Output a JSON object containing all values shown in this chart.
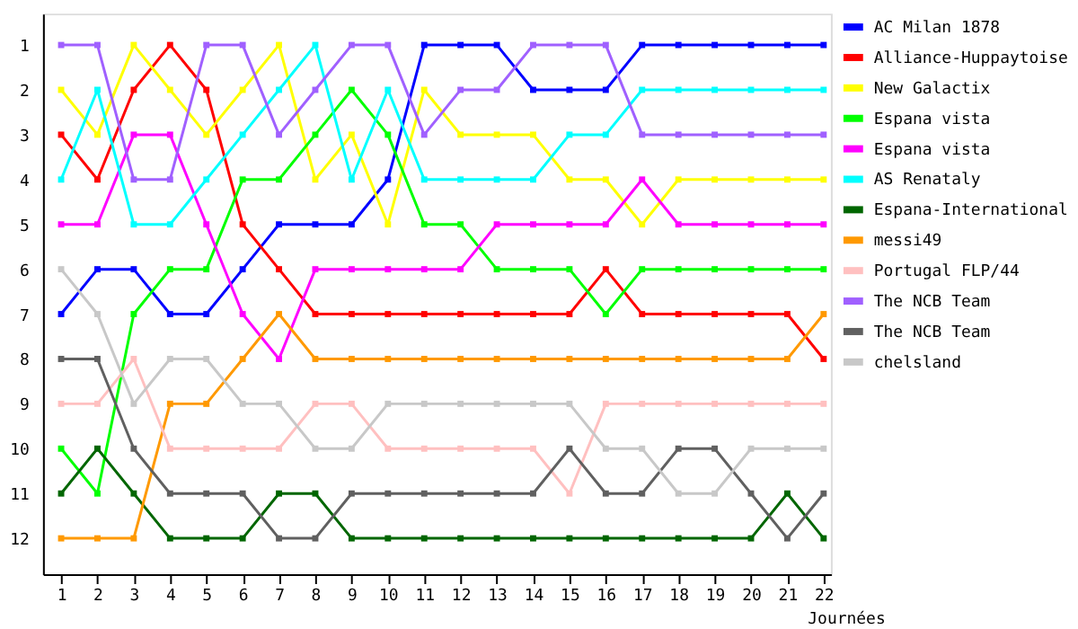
{
  "chart_data": {
    "type": "line",
    "xlabel": "Journées",
    "x": [
      1,
      2,
      3,
      4,
      5,
      6,
      7,
      8,
      9,
      10,
      11,
      12,
      13,
      14,
      15,
      16,
      17,
      18,
      19,
      20,
      21,
      22
    ],
    "xlim": [
      0.5,
      22.2
    ],
    "xticks": [
      1,
      2,
      3,
      4,
      5,
      6,
      7,
      8,
      9,
      10,
      11,
      12,
      13,
      14,
      15,
      16,
      17,
      18,
      19,
      20,
      21,
      22
    ],
    "ylim": [
      12.8,
      0.3
    ],
    "yticks": [
      1,
      2,
      3,
      4,
      5,
      6,
      7,
      8,
      9,
      10,
      11,
      12
    ],
    "grid": false,
    "legend": "right",
    "marker": "square",
    "line_style": "solid",
    "series": [
      {
        "name": "AC Milan 1878",
        "color": "#0000ff",
        "values": [
          7,
          6,
          6,
          7,
          7,
          6,
          5,
          5,
          5,
          4,
          1,
          1,
          1,
          2,
          2,
          2,
          1,
          1,
          1,
          1,
          1,
          1
        ]
      },
      {
        "name": "Alliance-Huppaytoise",
        "color": "#ff0000",
        "values": [
          3,
          4,
          2,
          1,
          2,
          5,
          6,
          7,
          7,
          7,
          7,
          7,
          7,
          7,
          7,
          6,
          7,
          7,
          7,
          7,
          7,
          8
        ]
      },
      {
        "name": "New Galactix",
        "color": "#ffff00",
        "values": [
          2,
          3,
          1,
          2,
          3,
          2,
          1,
          4,
          3,
          5,
          2,
          3,
          3,
          3,
          4,
          4,
          5,
          4,
          4,
          4,
          4,
          4
        ]
      },
      {
        "name": "Espana vista",
        "color": "#00ff00",
        "values": [
          10,
          11,
          7,
          6,
          6,
          4,
          4,
          3,
          2,
          3,
          5,
          5,
          6,
          6,
          6,
          7,
          6,
          6,
          6,
          6,
          6,
          6
        ]
      },
      {
        "name": "Espana vista",
        "color": "#ff00ff",
        "values": [
          5,
          5,
          3,
          3,
          5,
          7,
          8,
          6,
          6,
          6,
          6,
          6,
          5,
          5,
          5,
          5,
          4,
          5,
          5,
          5,
          5,
          5
        ]
      },
      {
        "name": "AS Renataly",
        "color": "#00ffff",
        "values": [
          4,
          2,
          5,
          5,
          4,
          3,
          2,
          1,
          4,
          2,
          4,
          4,
          4,
          4,
          3,
          3,
          2,
          2,
          2,
          2,
          2,
          2
        ]
      },
      {
        "name": "Espana-International",
        "color": "#006600",
        "values": [
          11,
          10,
          11,
          12,
          12,
          12,
          11,
          11,
          12,
          12,
          12,
          12,
          12,
          12,
          12,
          12,
          12,
          12,
          12,
          12,
          11,
          12
        ]
      },
      {
        "name": "messi49",
        "color": "#ff9900",
        "values": [
          12,
          12,
          12,
          9,
          9,
          8,
          7,
          8,
          8,
          8,
          8,
          8,
          8,
          8,
          8,
          8,
          8,
          8,
          8,
          8,
          8,
          7
        ]
      },
      {
        "name": "Portugal FLP/44",
        "color": "#ffc0c0",
        "values": [
          9,
          9,
          8,
          10,
          10,
          10,
          10,
          9,
          9,
          10,
          10,
          10,
          10,
          10,
          11,
          9,
          9,
          9,
          9,
          9,
          9,
          9
        ]
      },
      {
        "name": "The NCB Team",
        "color": "#a060ff",
        "values": [
          1,
          1,
          4,
          4,
          1,
          1,
          3,
          2,
          1,
          1,
          3,
          2,
          2,
          1,
          1,
          1,
          3,
          3,
          3,
          3,
          3,
          3
        ]
      },
      {
        "name": "The NCB Team",
        "color": "#606060",
        "values": [
          8,
          8,
          10,
          11,
          11,
          11,
          12,
          12,
          11,
          11,
          11,
          11,
          11,
          11,
          10,
          11,
          11,
          10,
          10,
          11,
          12,
          11
        ]
      },
      {
        "name": "chelsland",
        "color": "#c8c8c8",
        "values": [
          6,
          7,
          9,
          8,
          8,
          9,
          9,
          10,
          10,
          9,
          9,
          9,
          9,
          9,
          9,
          10,
          10,
          11,
          11,
          10,
          10,
          10
        ]
      }
    ]
  }
}
